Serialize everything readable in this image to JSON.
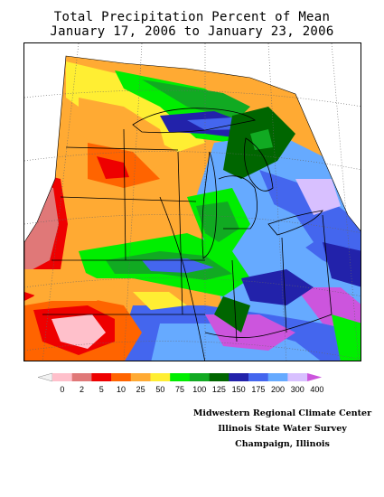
{
  "header": {
    "title_line1": "Total Precipitation Percent of Mean",
    "title_line2": "January 17, 2006 to January 23, 2006"
  },
  "legend": {
    "bins": [
      {
        "color": "#ffc0cb"
      },
      {
        "color": "#e07878"
      },
      {
        "color": "#ee0000"
      },
      {
        "color": "#ff6400"
      },
      {
        "color": "#ffaa33"
      },
      {
        "color": "#ffee33"
      },
      {
        "color": "#00ee00"
      },
      {
        "color": "#11aa22"
      },
      {
        "color": "#006600"
      },
      {
        "color": "#2222aa"
      },
      {
        "color": "#4466ee"
      },
      {
        "color": "#66aaff"
      },
      {
        "color": "#d8c0ff"
      },
      {
        "color": "#cc55dd"
      }
    ],
    "labels": [
      "0",
      "2",
      "5",
      "10",
      "25",
      "50",
      "75",
      "100",
      "125",
      "150",
      "175",
      "200",
      "300",
      "400"
    ]
  },
  "credits": {
    "line1": "Midwestern Regional Climate Center",
    "line2": "Illinois State Water Survey",
    "line3": "Champaign, Illinois"
  }
}
